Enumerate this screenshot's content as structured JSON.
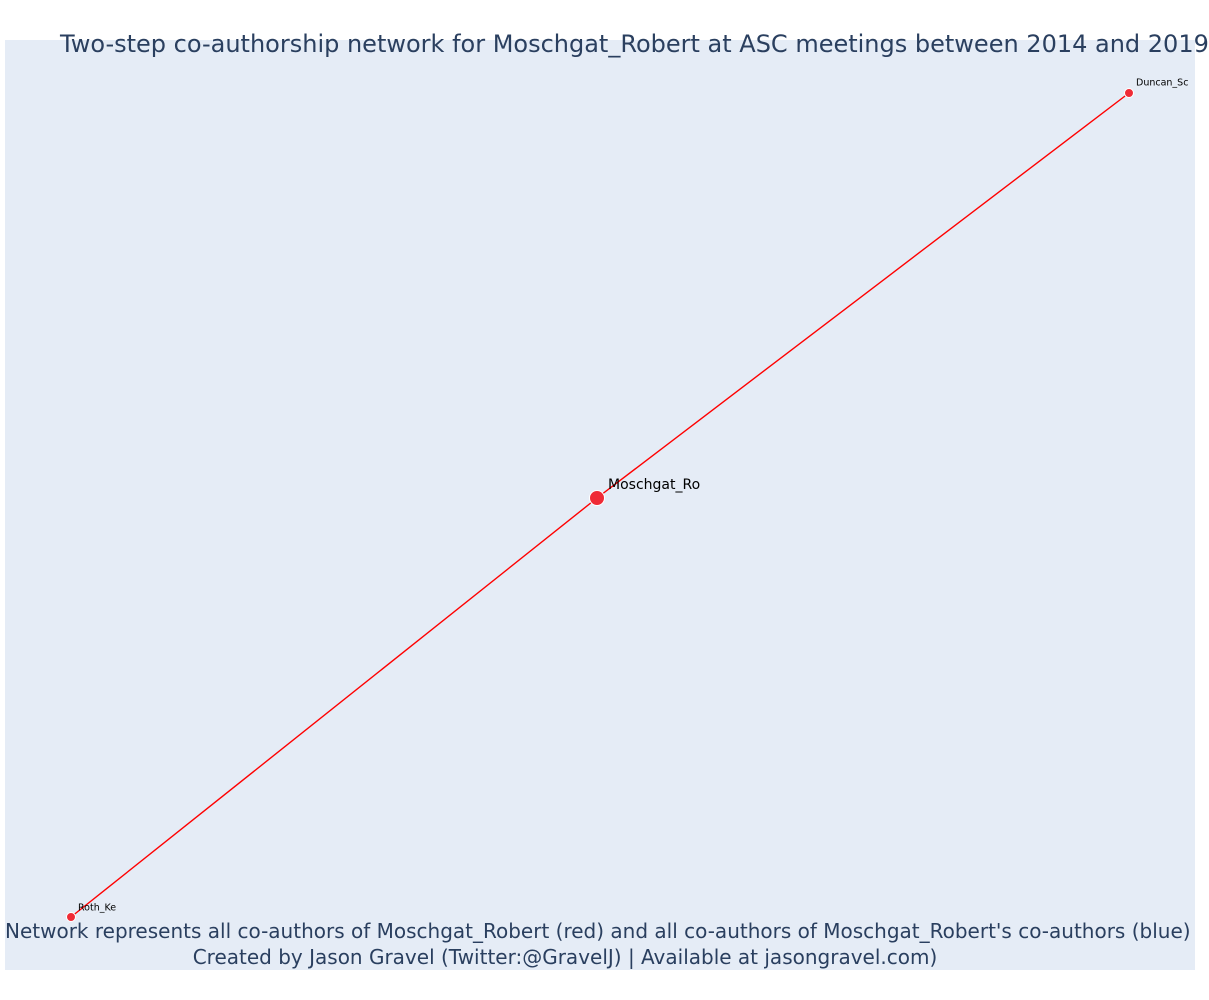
{
  "title": "Two-step co-authorship network for Moschgat_Robert at ASC meetings between 2014 and 2019",
  "caption": {
    "line1": "Network represents all co-authors of Moschgat_Robert (red) and all co-authors of Moschgat_Robert's co-authors (blue)",
    "line2": "Created by Jason Gravel (Twitter:@GravelJ) | Available at jasongravel.com)"
  },
  "colors": {
    "plot_background": "#e5ecf6",
    "edge": "#ff0000",
    "node_first_step": "#ef2b36",
    "node_border": "#ffffff",
    "text": "#2a3f5f"
  },
  "graph": {
    "focal_node": "Moschgat_Ro",
    "nodes": [
      {
        "id": "Moschgat_Ro",
        "label": "Moschgat_Ro",
        "group": "focal",
        "degree": 2
      },
      {
        "id": "Duncan_Sc",
        "label": "Duncan_Sc",
        "group": "co-author",
        "degree": 1
      },
      {
        "id": "Roth_Ke",
        "label": "Roth_Ke",
        "group": "co-author",
        "degree": 1
      }
    ],
    "edges": [
      {
        "source": "Moschgat_Ro",
        "target": "Duncan_Sc",
        "color": "red"
      },
      {
        "source": "Moschgat_Ro",
        "target": "Roth_Ke",
        "color": "red"
      }
    ]
  }
}
